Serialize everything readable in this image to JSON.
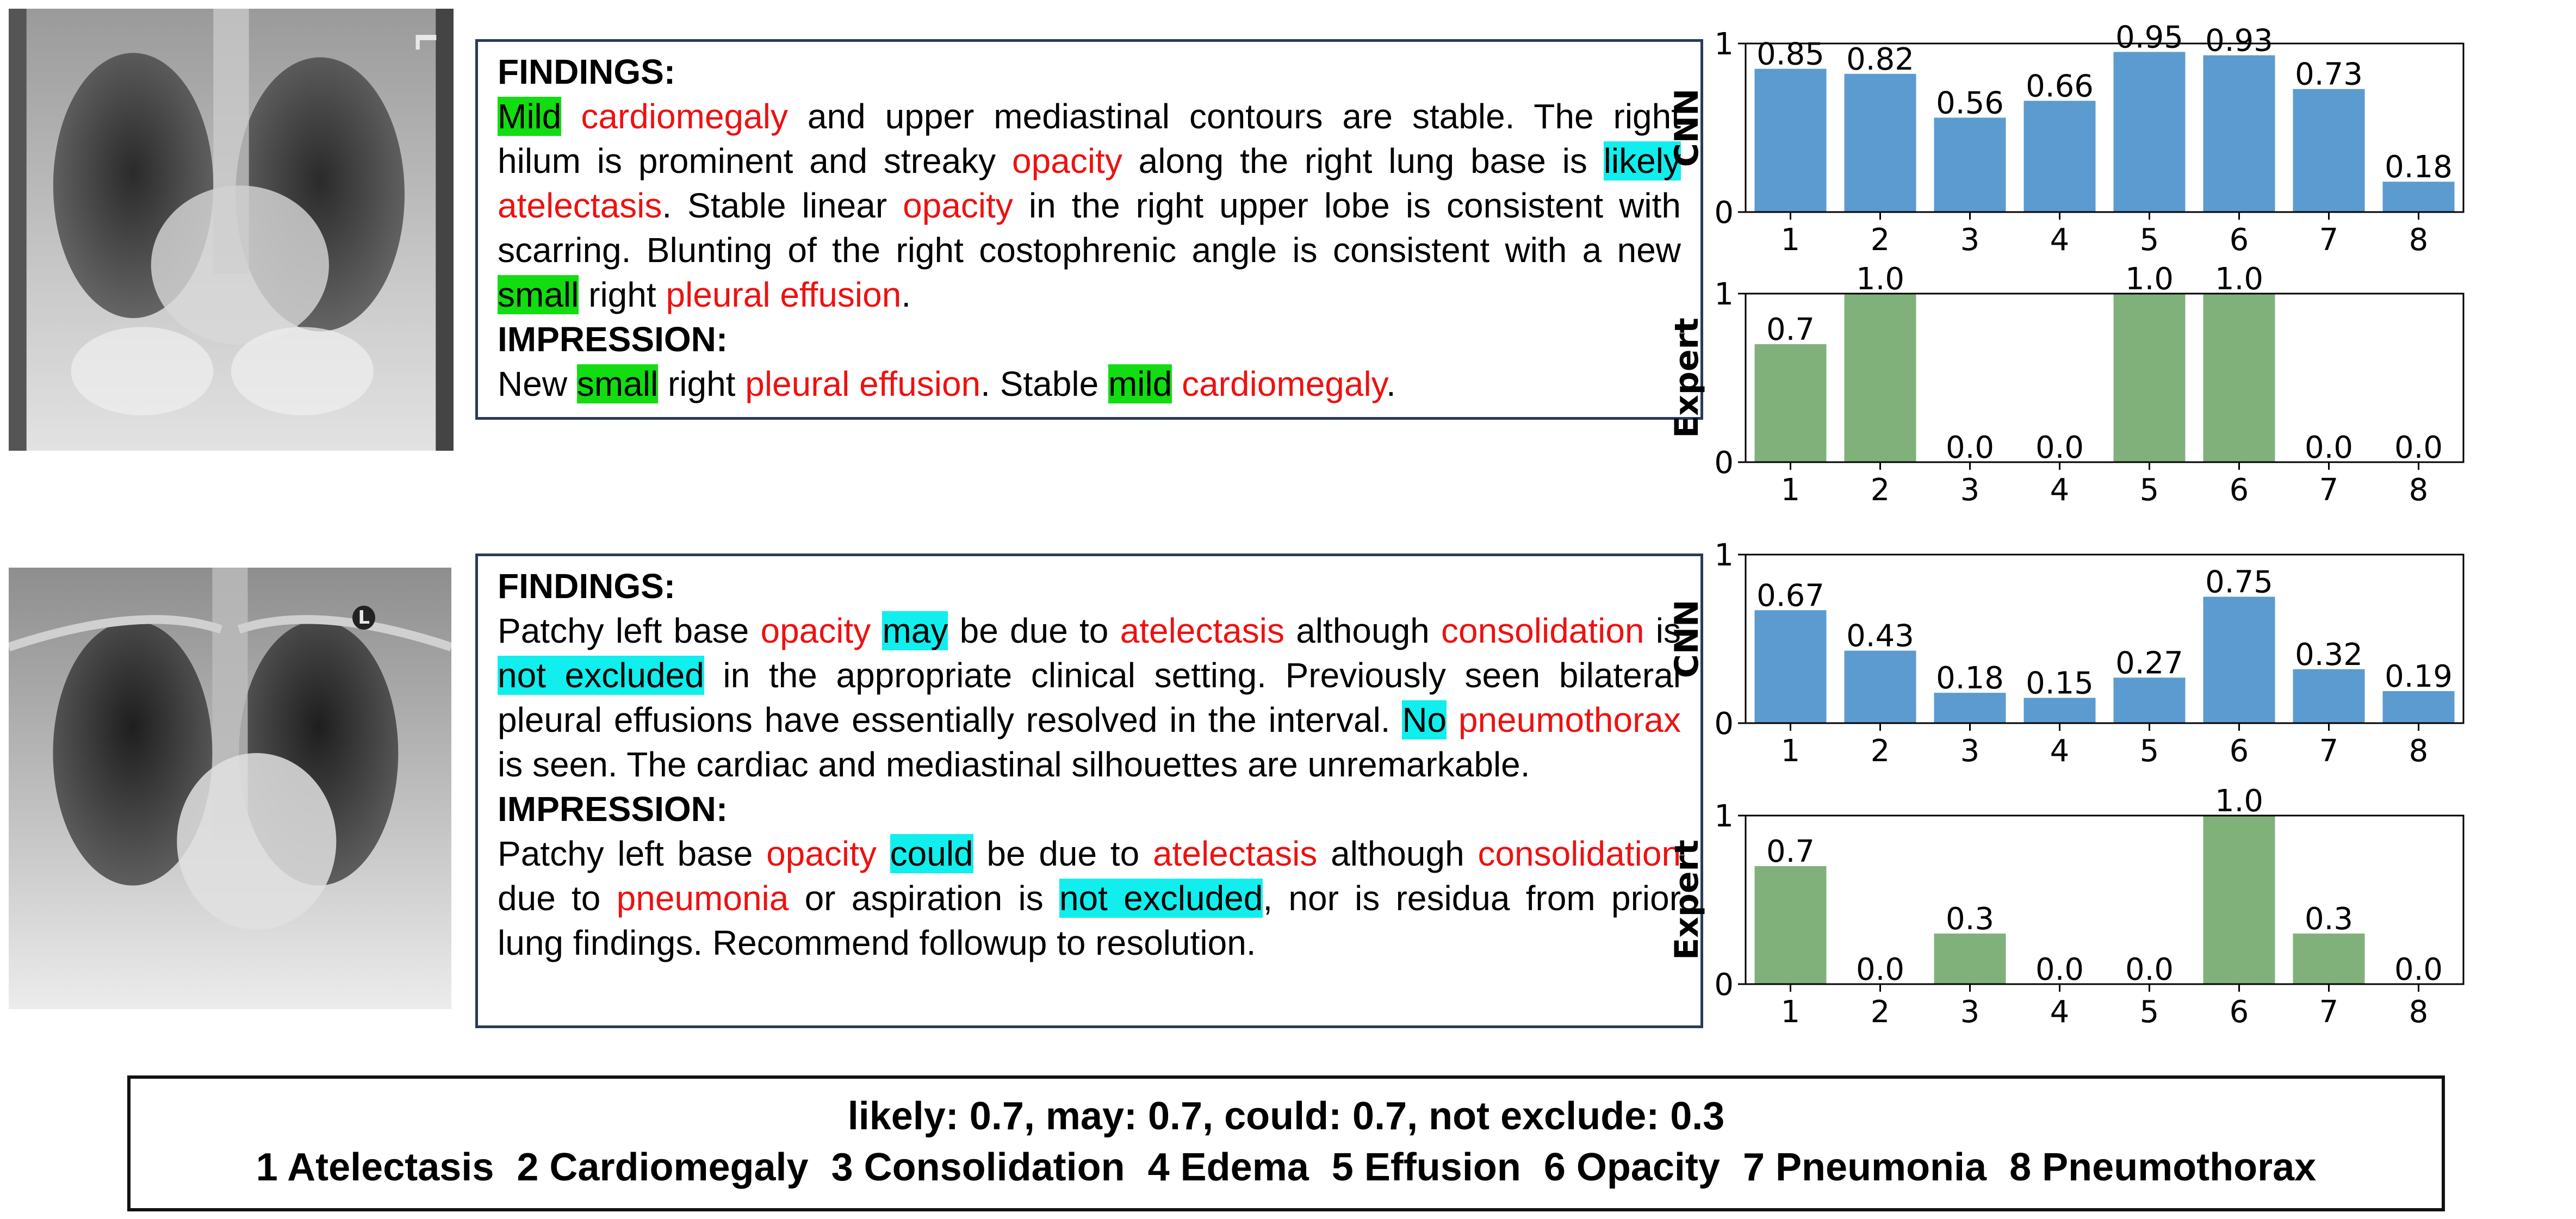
{
  "cases": [
    {
      "xray_marker": "L",
      "report": {
        "findings_heading": "FINDINGS:",
        "findings": [
          {
            "t": "Mild",
            "k": "sev"
          },
          {
            "t": " "
          },
          {
            "t": "cardiomegaly",
            "k": "dz"
          },
          {
            "t": " and upper mediastinal contours are stable. The right hilum is prominent and streaky "
          },
          {
            "t": "opacity",
            "k": "dz"
          },
          {
            "t": " along the right lung base is "
          },
          {
            "t": "likely",
            "k": "unc"
          },
          {
            "t": " "
          },
          {
            "t": "atelectasis",
            "k": "dz"
          },
          {
            "t": ". Stable linear "
          },
          {
            "t": "opacity",
            "k": "dz"
          },
          {
            "t": " in the right upper lobe is consistent with scarring. Blunting of the right costophrenic angle is consistent with a new "
          },
          {
            "t": "small",
            "k": "sev"
          },
          {
            "t": " right "
          },
          {
            "t": "pleural effusion",
            "k": "dz"
          },
          {
            "t": "."
          }
        ],
        "impression_heading": "IMPRESSION:",
        "impression": [
          {
            "t": "New "
          },
          {
            "t": "small",
            "k": "sev"
          },
          {
            "t": " right "
          },
          {
            "t": "pleural effusion",
            "k": "dz"
          },
          {
            "t": ". Stable "
          },
          {
            "t": "mild",
            "k": "sev"
          },
          {
            "t": " "
          },
          {
            "t": "cardiomegaly",
            "k": "dz"
          },
          {
            "t": "."
          }
        ]
      }
    },
    {
      "xray_marker": "L",
      "report": {
        "findings_heading": "FINDINGS:",
        "findings": [
          {
            "t": "Patchy left base "
          },
          {
            "t": "opacity",
            "k": "dz"
          },
          {
            "t": " "
          },
          {
            "t": "may",
            "k": "unc"
          },
          {
            "t": " be due to "
          },
          {
            "t": "atelectasis",
            "k": "dz"
          },
          {
            "t": " although "
          },
          {
            "t": "consolidation",
            "k": "dz"
          },
          {
            "t": " is "
          },
          {
            "t": "not excluded",
            "k": "unc"
          },
          {
            "t": " in the appropriate clinical setting. Previously seen bilateral pleural effusions have essentially resolved in the interval. "
          },
          {
            "t": "No",
            "k": "unc"
          },
          {
            "t": " "
          },
          {
            "t": "pneumothorax",
            "k": "dz"
          },
          {
            "t": " is seen. The cardiac and mediastinal silhouettes are unremarkable."
          }
        ],
        "impression_heading": "IMPRESSION:",
        "impression": [
          {
            "t": "Patchy left base "
          },
          {
            "t": "opacity",
            "k": "dz"
          },
          {
            "t": " "
          },
          {
            "t": "could",
            "k": "unc"
          },
          {
            "t": " be due to "
          },
          {
            "t": "atelectasis",
            "k": "dz"
          },
          {
            "t": " although "
          },
          {
            "t": "consolidation",
            "k": "dz"
          },
          {
            "t": " due to "
          },
          {
            "t": "pneumonia",
            "k": "dz"
          },
          {
            "t": " or aspiration is "
          },
          {
            "t": "not excluded",
            "k": "unc"
          },
          {
            "t": ", nor is residua from prior lung findings. Recommend followup to resolution."
          }
        ]
      }
    }
  ],
  "chart_data": [
    {
      "type": "bar",
      "ylabel": "CNN",
      "categories": [
        "1",
        "2",
        "3",
        "4",
        "5",
        "6",
        "7",
        "8"
      ],
      "values": [
        0.85,
        0.82,
        0.56,
        0.66,
        0.95,
        0.93,
        0.73,
        0.18
      ],
      "labels": [
        "0.85",
        "0.82",
        "0.56",
        "0.66",
        "0.95",
        "0.93",
        "0.73",
        "0.18"
      ],
      "yticks": [
        "0",
        "1"
      ],
      "ylim": [
        0,
        1.0
      ],
      "color": "#5b9bd0"
    },
    {
      "type": "bar",
      "ylabel": "Expert",
      "categories": [
        "1",
        "2",
        "3",
        "4",
        "5",
        "6",
        "7",
        "8"
      ],
      "values": [
        0.7,
        1.0,
        0.0,
        0.0,
        1.0,
        1.0,
        0.0,
        0.0
      ],
      "labels": [
        "0.7",
        "1.0",
        "0.0",
        "0.0",
        "1.0",
        "1.0",
        "0.0",
        "0.0"
      ],
      "yticks": [
        "0",
        "1"
      ],
      "ylim": [
        0,
        1.0
      ],
      "color": "#80b17b"
    },
    {
      "type": "bar",
      "ylabel": "CNN",
      "categories": [
        "1",
        "2",
        "3",
        "4",
        "5",
        "6",
        "7",
        "8"
      ],
      "values": [
        0.67,
        0.43,
        0.18,
        0.15,
        0.27,
        0.75,
        0.32,
        0.19
      ],
      "labels": [
        "0.67",
        "0.43",
        "0.18",
        "0.15",
        "0.27",
        "0.75",
        "0.32",
        "0.19"
      ],
      "yticks": [
        "0",
        "1"
      ],
      "ylim": [
        0,
        1.0
      ],
      "color": "#5b9bd0"
    },
    {
      "type": "bar",
      "ylabel": "Expert",
      "categories": [
        "1",
        "2",
        "3",
        "4",
        "5",
        "6",
        "7",
        "8"
      ],
      "values": [
        0.7,
        0.0,
        0.3,
        0.0,
        0.0,
        1.0,
        0.3,
        0.0
      ],
      "labels": [
        "0.7",
        "0.0",
        "0.3",
        "0.0",
        "0.0",
        "1.0",
        "0.3",
        "0.0"
      ],
      "yticks": [
        "0",
        "1"
      ],
      "ylim": [
        0,
        1.0
      ],
      "color": "#80b17b"
    }
  ],
  "legend": {
    "line1": "likely: 0.7, may: 0.7, could: 0.7, not exclude: 0.3",
    "categories": [
      "1 Atelectasis",
      "2 Cardiomegaly",
      "3 Consolidation",
      "4 Edema",
      "5 Effusion",
      "6 Opacity",
      "7 Pneumonia",
      "8 Pneumothorax"
    ]
  }
}
